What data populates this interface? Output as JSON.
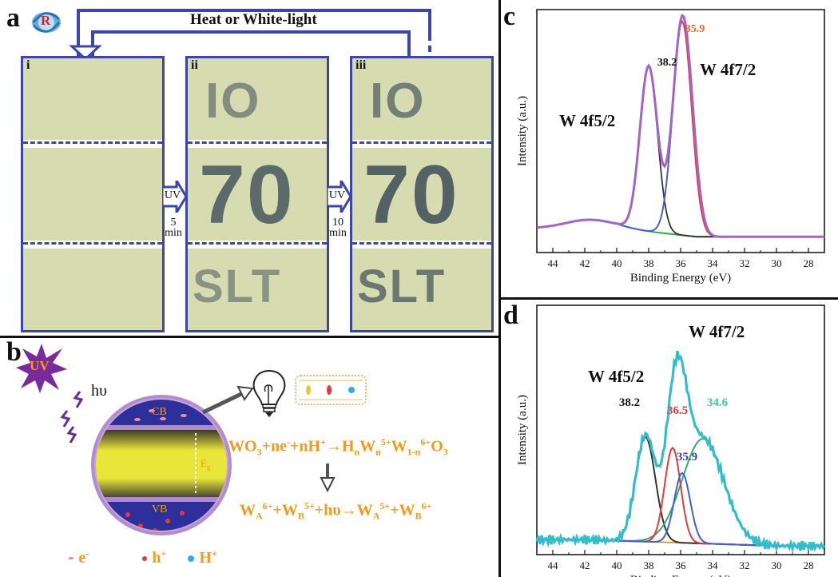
{
  "panel_a": {
    "letter": "a",
    "badge": "R",
    "heat_label": "Heat or White-light",
    "subpanels": [
      "i",
      "ii",
      "iii"
    ],
    "uv1": {
      "top": "UV",
      "bottom": "5",
      "unit": "min"
    },
    "uv2": {
      "top": "UV",
      "bottom": "10",
      "unit": "min"
    },
    "row1_text": "IO",
    "row2_text": "70",
    "row3_text": "SLT"
  },
  "panel_b": {
    "letter": "b",
    "uv_label": "UV",
    "hv_label": "hυ",
    "cb_label": "CB",
    "vb_label": "VB",
    "eg_label": "E",
    "eg_sub": "g",
    "eq1": {
      "p1": "WO",
      "s1": "3",
      "p2": "+ne",
      "s2": "-",
      "p3": "+nH",
      "s3": "+",
      "p4": "→H",
      "s4": "n",
      "p5": "W",
      "s5": "n",
      "sup5": "5+",
      "p6": "W",
      "s6": "1-n",
      "sup6": "6+",
      "p7": "O",
      "s7": "3"
    },
    "eq2": {
      "p1": "W",
      "sub1": "A",
      "sup1": "6+",
      "p2": "+W",
      "sub2": "B",
      "sup2": "5+",
      "p3": "+hυ→W",
      "sub3": "A",
      "sup3": "5+",
      "p4": "+W",
      "sub4": "B",
      "sup4": "6+"
    },
    "legend": {
      "e": "e",
      "e_sup": "-",
      "h": "h",
      "h_sup": "+",
      "H": "H",
      "H_sup": "+"
    }
  },
  "chart_data": [
    {
      "panel": "c",
      "type": "line",
      "xlabel": "Binding Energy (eV)",
      "ylabel": "Intensity (a.u.)",
      "xlim": [
        45,
        27
      ],
      "x_ticks": [
        44,
        42,
        40,
        38,
        36,
        34,
        32,
        30,
        28
      ],
      "peaks": [
        {
          "label": "38.2",
          "x": 38.2,
          "color": "#111111"
        },
        {
          "label": "35.9",
          "x": 35.9,
          "color": "#e26a2c"
        }
      ],
      "annotations": [
        "W 4f5/2",
        "W 4f7/2"
      ],
      "series_colors": {
        "envelope": "#a165c6",
        "peak1": "#333333",
        "peak2": "#e23b3b",
        "peak3": "#3a62d8",
        "baseline": "#2aa84a"
      }
    },
    {
      "panel": "d",
      "type": "line",
      "xlabel": "Binding Energy (eV)",
      "ylabel": "Intensity (a.u.)",
      "xlim": [
        45,
        27
      ],
      "x_ticks": [
        44,
        42,
        40,
        38,
        36,
        34,
        32,
        30,
        28
      ],
      "peaks": [
        {
          "label": "38.2",
          "x": 38.2,
          "color": "#111111"
        },
        {
          "label": "36.5",
          "x": 36.5,
          "color": "#e23b3b"
        },
        {
          "label": "35.9",
          "x": 35.9,
          "color": "#3a45b8"
        },
        {
          "label": "34.6",
          "x": 34.6,
          "color": "#3cc6a4"
        }
      ],
      "annotations": [
        "W 4f5/2",
        "W 4f7/2"
      ],
      "series_colors": {
        "envelope": "#35bccc",
        "peak1": "#333333",
        "peak2": "#e23b3b",
        "peak3": "#3a62d8",
        "peak4": "#3aa86a",
        "baseline": "#c89a2a"
      }
    }
  ]
}
